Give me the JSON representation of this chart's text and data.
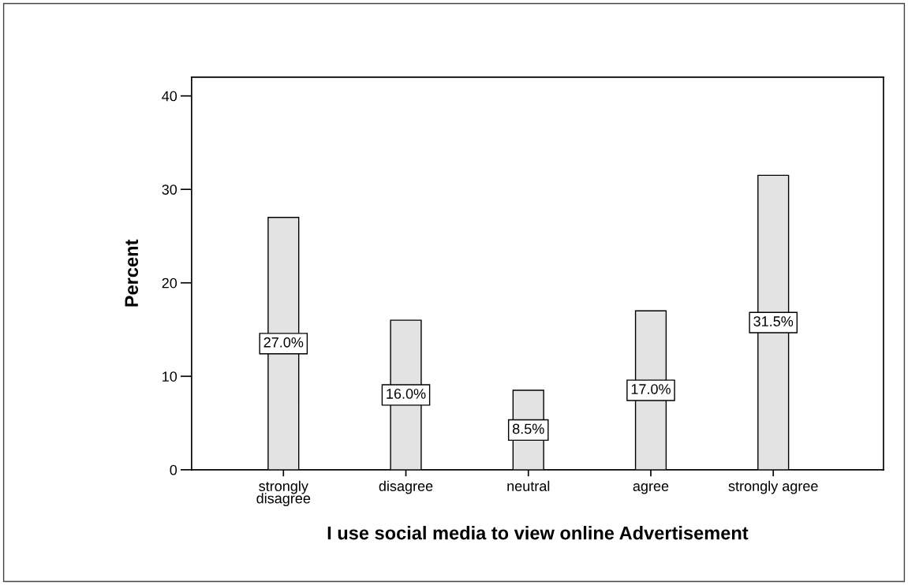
{
  "chart_data": {
    "type": "bar",
    "categories": [
      "strongly\ndisagree",
      "disagree",
      "neutral",
      "agree",
      "strongly agree"
    ],
    "values": [
      27.0,
      16.0,
      8.5,
      17.0,
      31.5
    ],
    "value_labels": [
      "27.0%",
      "16.0%",
      "8.5%",
      "17.0%",
      "31.5%"
    ],
    "color": "#e3e3e3",
    "xlabel": "I use social media to view online Advertisement",
    "ylabel": "Percent",
    "ylim": [
      0,
      42
    ],
    "yticks": [
      0,
      10,
      20,
      30,
      40
    ],
    "grid": false,
    "legend": false
  }
}
